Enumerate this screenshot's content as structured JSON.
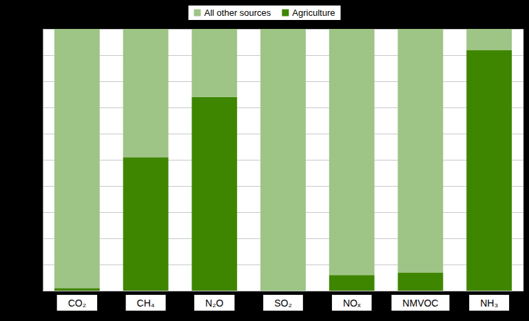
{
  "chart_data": {
    "type": "bar",
    "stacked": true,
    "categories": [
      "CO₂",
      "CH₄",
      "N₂O",
      "SO₂",
      "NOₓ",
      "NMVOC",
      "NH₃"
    ],
    "series": [
      {
        "name": "Agriculture",
        "color": "#3f8600",
        "values": [
          1,
          51,
          74,
          0,
          6,
          7,
          92
        ]
      },
      {
        "name": "All other sources",
        "color": "#9ec486",
        "values": [
          99,
          49,
          26,
          100,
          94,
          93,
          8
        ]
      }
    ],
    "ylim": [
      0,
      100
    ],
    "yticks": [
      0,
      10,
      20,
      30,
      40,
      50,
      60,
      70,
      80,
      90,
      100
    ],
    "grid": true,
    "legend": "top",
    "tick_labels": "x"
  }
}
